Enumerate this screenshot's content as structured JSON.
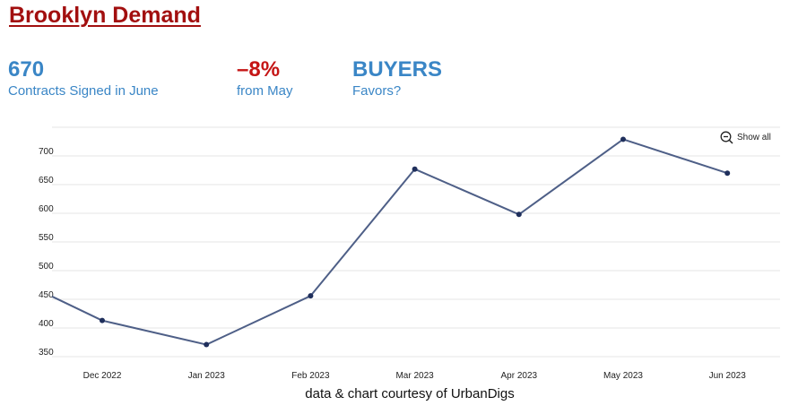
{
  "title": "Brooklyn Demand",
  "stats": {
    "contracts": {
      "value": "670",
      "label": "Contracts Signed in June"
    },
    "change": {
      "value": "–8%",
      "label": "from May"
    },
    "favors": {
      "value": "BUYERS",
      "label": "Favors?"
    }
  },
  "controls": {
    "show_all_label": "Show all",
    "show_all_icon": "zoom-out-icon"
  },
  "credit": "data & chart courtesy of UrbanDigs",
  "colors": {
    "title": "#a20f0f",
    "accent_blue": "#3a86c6",
    "negative_red": "#c51616",
    "line": "#4e5f87",
    "point": "#1f2f5c"
  },
  "chart_data": {
    "type": "line",
    "title": "",
    "xlabel": "",
    "ylabel": "",
    "categories": [
      "Dec 2022",
      "Jan 2023",
      "Feb 2023",
      "Mar 2023",
      "Apr 2023",
      "May 2023",
      "Jun 2023"
    ],
    "leading_value": 455,
    "values": [
      413,
      371,
      456,
      677,
      598,
      729,
      670
    ],
    "y_ticks": [
      350,
      400,
      450,
      500,
      550,
      600,
      650,
      700
    ],
    "ylim": [
      335,
      750
    ],
    "grid": true,
    "legend": "none"
  }
}
